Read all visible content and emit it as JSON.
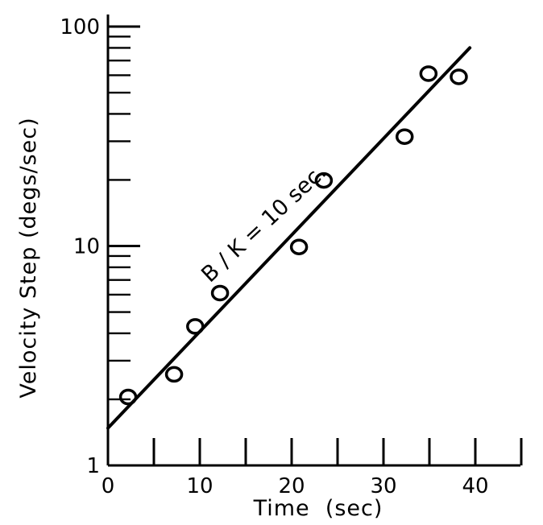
{
  "chart_data": {
    "type": "scatter",
    "title": "",
    "xlabel": "Time  (sec)",
    "ylabel": "Velocity Step (degs/sec)",
    "xlim": [
      0,
      47
    ],
    "ylim": [
      1,
      100
    ],
    "yscale": "log",
    "grid": false,
    "x_ticks": [
      0,
      10,
      20,
      30,
      40
    ],
    "x_tick_labels": [
      "0",
      "10",
      "20",
      "30",
      "40"
    ],
    "x_minor_ticks": [
      5,
      15,
      25,
      35,
      45
    ],
    "y_ticks": [
      1,
      10,
      100
    ],
    "y_tick_labels": [
      "1",
      "10",
      "100"
    ],
    "y_minor_ticks": [
      2,
      3,
      4,
      5,
      6,
      7,
      8,
      9,
      20,
      30,
      40,
      50,
      60,
      70,
      80,
      90
    ],
    "points": [
      {
        "x": 2.2,
        "y": 2.05
      },
      {
        "x": 7.2,
        "y": 2.6
      },
      {
        "x": 9.5,
        "y": 4.3
      },
      {
        "x": 12.2,
        "y": 6.1
      },
      {
        "x": 20.8,
        "y": 9.9
      },
      {
        "x": 23.5,
        "y": 19.9
      },
      {
        "x": 32.3,
        "y": 31.5
      },
      {
        "x": 34.9,
        "y": 61
      },
      {
        "x": 38.2,
        "y": 59
      }
    ],
    "fit_line": {
      "x": [
        0,
        39.4
      ],
      "y": [
        1.48,
        80
      ]
    },
    "annotations": [
      {
        "text": "B / K = 10 sec.",
        "x": 17.5,
        "y": 12
      }
    ]
  }
}
